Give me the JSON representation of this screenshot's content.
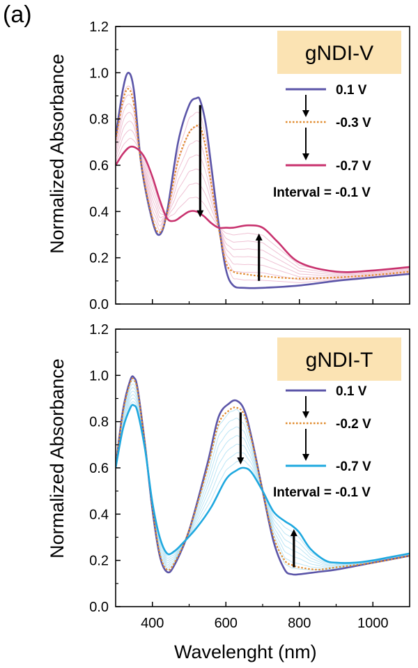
{
  "panel_label": "(a)",
  "chart_data": [
    {
      "type": "line",
      "title": "gNDI-V",
      "ylabel": "Normalized Absorbance",
      "xlabel": "",
      "xlim": [
        300,
        1100
      ],
      "ylim": [
        0.0,
        1.2
      ],
      "yticks": [
        0.0,
        0.2,
        0.4,
        0.6,
        0.8,
        1.0,
        1.2
      ],
      "ytick_labels": [
        "0.0",
        "0.2",
        "0.4",
        "0.6",
        "0.8",
        "1.0",
        "1.2"
      ],
      "xticks": [],
      "title_box_color": "#fbe3b3",
      "interval_label": "Interval = -0.1 V",
      "grid": false,
      "legend_position": "right",
      "series": [
        {
          "name": "0.1 V",
          "color": "#5b55a8",
          "style": "solid",
          "x": [
            300,
            320,
            335,
            350,
            370,
            400,
            420,
            440,
            470,
            500,
            520,
            530,
            545,
            560,
            580,
            600,
            620,
            650,
            700,
            800,
            900,
            1000,
            1100
          ],
          "y": [
            0.72,
            0.93,
            1.0,
            0.92,
            0.6,
            0.36,
            0.3,
            0.4,
            0.7,
            0.86,
            0.89,
            0.88,
            0.78,
            0.6,
            0.35,
            0.15,
            0.08,
            0.07,
            0.07,
            0.08,
            0.1,
            0.115,
            0.13
          ]
        },
        {
          "name": "-0.3 V",
          "color": "#e08a2c",
          "style": "dotted",
          "x": [
            300,
            320,
            335,
            350,
            370,
            400,
            420,
            440,
            470,
            500,
            520,
            530,
            545,
            560,
            580,
            600,
            620,
            650,
            700,
            800,
            900,
            1000,
            1100
          ],
          "y": [
            0.71,
            0.88,
            0.93,
            0.86,
            0.6,
            0.37,
            0.31,
            0.39,
            0.62,
            0.74,
            0.77,
            0.77,
            0.68,
            0.52,
            0.33,
            0.18,
            0.14,
            0.13,
            0.12,
            0.11,
            0.115,
            0.125,
            0.14
          ]
        },
        {
          "name": "-0.7 V",
          "color": "#c8326e",
          "style": "solid",
          "x": [
            300,
            320,
            340,
            360,
            380,
            400,
            420,
            440,
            460,
            480,
            500,
            520,
            540,
            560,
            580,
            600,
            620,
            660,
            700,
            740,
            800,
            900,
            1000,
            1100
          ],
          "y": [
            0.6,
            0.65,
            0.68,
            0.67,
            0.63,
            0.55,
            0.45,
            0.37,
            0.36,
            0.38,
            0.4,
            0.4,
            0.38,
            0.35,
            0.33,
            0.33,
            0.33,
            0.34,
            0.33,
            0.27,
            0.18,
            0.14,
            0.145,
            0.16
          ]
        }
      ],
      "annotations": [
        {
          "type": "arrow",
          "direction": "down",
          "from": [
            530,
            0.86
          ],
          "to": [
            530,
            0.39
          ]
        },
        {
          "type": "arrow",
          "direction": "up",
          "from": [
            690,
            0.1
          ],
          "to": [
            690,
            0.29
          ]
        }
      ]
    },
    {
      "type": "line",
      "title": "gNDI-T",
      "ylabel": "Normalized Absorbance",
      "xlabel": "Wavelenght (nm)",
      "xlim": [
        300,
        1100
      ],
      "ylim": [
        0.0,
        1.2
      ],
      "yticks": [
        0.0,
        0.2,
        0.4,
        0.6,
        0.8,
        1.0,
        1.2
      ],
      "ytick_labels": [
        "0.0",
        "0.2",
        "0.4",
        "0.6",
        "0.8",
        "1.0",
        "1.2"
      ],
      "xticks": [
        400,
        600,
        800,
        1000
      ],
      "xtick_labels": [
        "400",
        "600",
        "800",
        "1000"
      ],
      "title_box_color": "#fbe3b3",
      "interval_label": "Interval = -0.1 V",
      "grid": false,
      "legend_position": "right",
      "series": [
        {
          "name": "0.1 V",
          "color": "#5b55a8",
          "style": "solid",
          "x": [
            300,
            320,
            340,
            350,
            360,
            380,
            400,
            420,
            440,
            460,
            500,
            550,
            580,
            610,
            630,
            650,
            670,
            700,
            730,
            760,
            780,
            800,
            850,
            900,
            1000,
            1100
          ],
          "y": [
            0.6,
            0.85,
            0.98,
            0.99,
            0.94,
            0.7,
            0.42,
            0.22,
            0.15,
            0.18,
            0.33,
            0.62,
            0.82,
            0.88,
            0.89,
            0.85,
            0.73,
            0.5,
            0.28,
            0.16,
            0.14,
            0.14,
            0.15,
            0.16,
            0.19,
            0.22
          ]
        },
        {
          "name": "-0.2 V",
          "color": "#e08a2c",
          "style": "dotted",
          "x": [
            300,
            320,
            340,
            350,
            360,
            380,
            400,
            420,
            440,
            460,
            500,
            550,
            580,
            610,
            630,
            650,
            670,
            700,
            730,
            760,
            780,
            800,
            850,
            900,
            1000,
            1100
          ],
          "y": [
            0.6,
            0.84,
            0.97,
            0.98,
            0.93,
            0.7,
            0.43,
            0.23,
            0.16,
            0.19,
            0.33,
            0.6,
            0.79,
            0.85,
            0.86,
            0.83,
            0.72,
            0.5,
            0.3,
            0.2,
            0.18,
            0.17,
            0.16,
            0.17,
            0.19,
            0.22
          ]
        },
        {
          "name": "-0.7 V",
          "color": "#1ea8df",
          "style": "solid",
          "x": [
            300,
            320,
            340,
            350,
            360,
            380,
            400,
            420,
            440,
            460,
            480,
            520,
            560,
            600,
            630,
            650,
            670,
            700,
            730,
            760,
            780,
            800,
            830,
            870,
            900,
            950,
            1000,
            1050,
            1100
          ],
          "y": [
            0.6,
            0.77,
            0.86,
            0.87,
            0.84,
            0.68,
            0.45,
            0.3,
            0.23,
            0.24,
            0.27,
            0.34,
            0.43,
            0.55,
            0.59,
            0.6,
            0.58,
            0.5,
            0.41,
            0.37,
            0.35,
            0.32,
            0.25,
            0.2,
            0.19,
            0.19,
            0.2,
            0.215,
            0.23
          ]
        }
      ],
      "annotations": [
        {
          "type": "arrow",
          "direction": "down",
          "from": [
            640,
            0.84
          ],
          "to": [
            640,
            0.63
          ]
        },
        {
          "type": "arrow",
          "direction": "up",
          "from": [
            785,
            0.17
          ],
          "to": [
            785,
            0.32
          ]
        }
      ]
    }
  ]
}
